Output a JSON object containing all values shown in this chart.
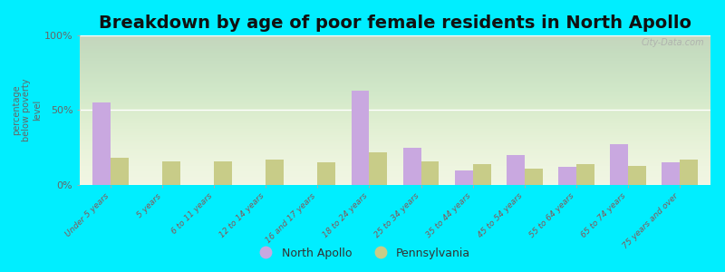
{
  "title": "Breakdown by age of poor female residents in North Apollo",
  "ylabel": "percentage\nbelow poverty\nlevel",
  "categories": [
    "Under 5 years",
    "5 years",
    "6 to 11 years",
    "12 to 14 years",
    "16 and 17 years",
    "18 to 24 years",
    "25 to 34 years",
    "35 to 44 years",
    "45 to 54 years",
    "55 to 64 years",
    "65 to 74 years",
    "75 years and over"
  ],
  "north_apollo": [
    55,
    0,
    0,
    0,
    0,
    63,
    25,
    10,
    20,
    12,
    27,
    15
  ],
  "pennsylvania": [
    18,
    16,
    16,
    17,
    15,
    22,
    16,
    14,
    11,
    14,
    13,
    17
  ],
  "north_apollo_color": "#c9a8e0",
  "pennsylvania_color": "#c8cc88",
  "background_color": "#00eeff",
  "ylim": [
    0,
    100
  ],
  "yticks": [
    0,
    50,
    100
  ],
  "ytick_labels": [
    "0%",
    "50%",
    "100%"
  ],
  "bar_width": 0.35,
  "title_fontsize": 14,
  "legend_labels": [
    "North Apollo",
    "Pennsylvania"
  ],
  "watermark": "City-Data.com",
  "label_color": "#885555",
  "tick_color": "#666666"
}
